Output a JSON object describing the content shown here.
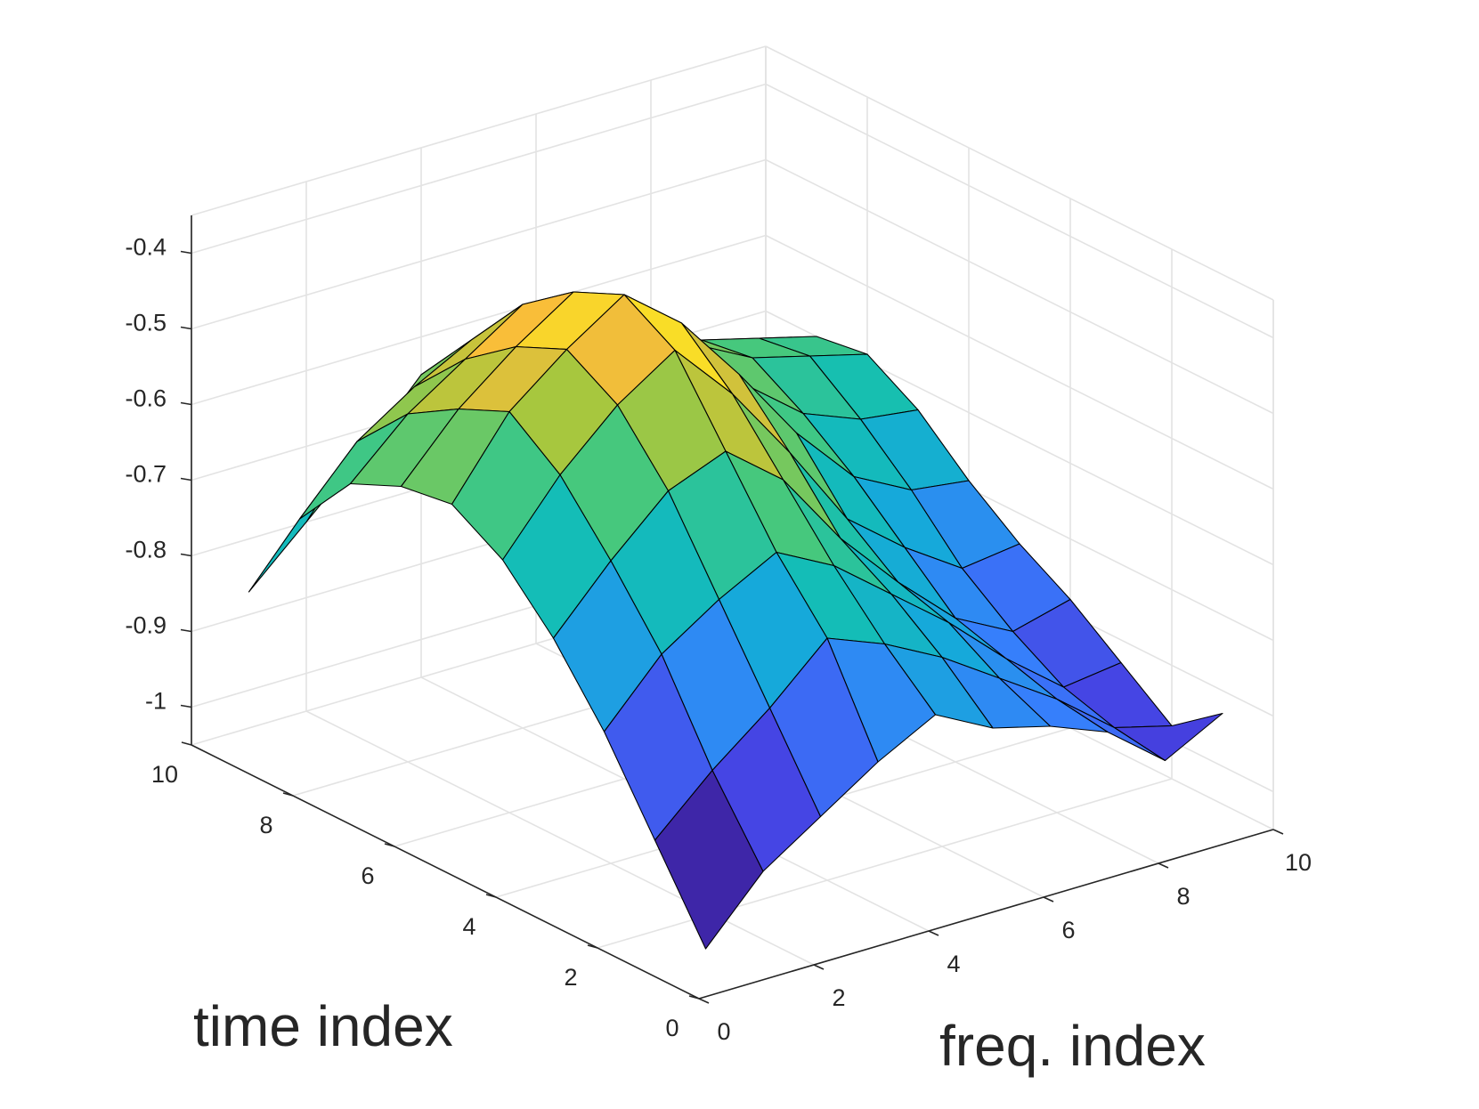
{
  "chart_data": {
    "type": "surface",
    "xlabel": "freq. index",
    "ylabel": "time index",
    "zlabel": "",
    "xlim": [
      0,
      10
    ],
    "ylim": [
      0,
      10
    ],
    "zlim": [
      -1.05,
      -0.35
    ],
    "grid": true,
    "colormap": "parula",
    "x": [
      1,
      2,
      3,
      4,
      5,
      6,
      7,
      8,
      9,
      10
    ],
    "y": [
      1,
      2,
      3,
      4,
      5,
      6,
      7,
      8,
      9,
      10
    ],
    "z": [
      [
        -1.04,
        -0.96,
        -0.91,
        -0.86,
        -0.82,
        -0.86,
        -0.88,
        -0.91,
        -0.97,
        -0.93
      ],
      [
        -0.93,
        -0.86,
        -0.8,
        -0.73,
        -0.76,
        -0.8,
        -0.85,
        -0.9,
        -0.96,
        -0.98
      ],
      [
        -0.82,
        -0.74,
        -0.69,
        -0.65,
        -0.69,
        -0.75,
        -0.81,
        -0.88,
        -0.94,
        -0.93
      ],
      [
        -0.73,
        -0.65,
        -0.58,
        -0.55,
        -0.61,
        -0.71,
        -0.79,
        -0.86,
        -0.9,
        -0.88
      ],
      [
        -0.66,
        -0.57,
        -0.5,
        -0.45,
        -0.53,
        -0.63,
        -0.74,
        -0.8,
        -0.85,
        -0.84
      ],
      [
        -0.62,
        -0.52,
        -0.46,
        -0.41,
        -0.47,
        -0.56,
        -0.66,
        -0.74,
        -0.78,
        -0.79
      ],
      [
        -0.63,
        -0.55,
        -0.49,
        -0.44,
        -0.48,
        -0.56,
        -0.63,
        -0.69,
        -0.72,
        -0.73
      ],
      [
        -0.66,
        -0.59,
        -0.54,
        -0.49,
        -0.51,
        -0.56,
        -0.61,
        -0.65,
        -0.67,
        -0.69
      ],
      [
        -0.74,
        -0.66,
        -0.61,
        -0.57,
        -0.57,
        -0.61,
        -0.63,
        -0.66,
        -0.68,
        -0.7
      ],
      [
        -0.87,
        -0.8,
        -0.73,
        -0.65,
        -0.64,
        -0.66,
        -0.7,
        -0.76,
        -0.81,
        -0.85
      ]
    ],
    "x_ticks": [
      "0",
      "2",
      "4",
      "6",
      "8",
      "10"
    ],
    "y_ticks": [
      "0",
      "2",
      "4",
      "6",
      "8",
      "10"
    ],
    "z_ticks": [
      "-1",
      "-0.9",
      "-0.8",
      "-0.7",
      "-0.6",
      "-0.5",
      "-0.4"
    ]
  }
}
